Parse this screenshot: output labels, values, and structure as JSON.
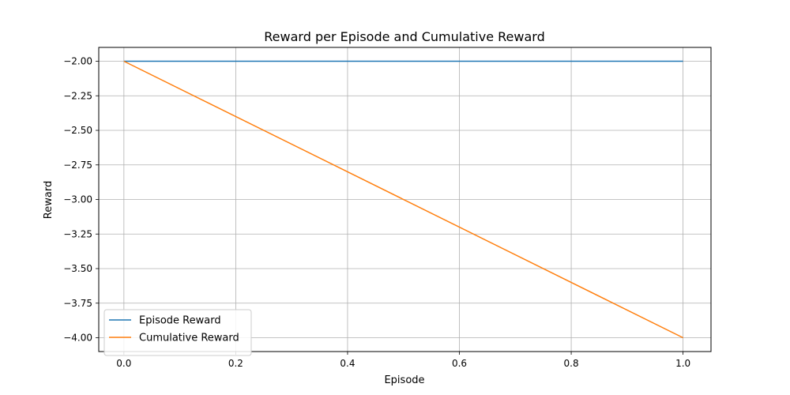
{
  "chart_data": {
    "type": "line",
    "title": "Reward per Episode and Cumulative Reward",
    "xlabel": "Episode",
    "ylabel": "Reward",
    "xlim": [
      -0.045,
      1.05
    ],
    "ylim": [
      -4.1,
      -1.9
    ],
    "xticks": [
      0.0,
      0.2,
      0.4,
      0.6,
      0.8,
      1.0
    ],
    "xtick_labels": [
      "0.0",
      "0.2",
      "0.4",
      "0.6",
      "0.8",
      "1.0"
    ],
    "yticks": [
      -2.0,
      -2.25,
      -2.5,
      -2.75,
      -3.0,
      -3.25,
      -3.5,
      -3.75,
      -4.0
    ],
    "ytick_labels": [
      "−2.00",
      "−2.25",
      "−2.50",
      "−2.75",
      "−3.00",
      "−3.25",
      "−3.50",
      "−3.75",
      "−4.00"
    ],
    "grid": true,
    "legend_position": "lower-left",
    "series": [
      {
        "name": "Episode Reward",
        "color": "#1f77b4",
        "x": [
          0,
          1
        ],
        "y": [
          -2,
          -2
        ]
      },
      {
        "name": "Cumulative Reward",
        "color": "#ff7f0e",
        "x": [
          0,
          1
        ],
        "y": [
          -2,
          -4
        ]
      }
    ]
  }
}
